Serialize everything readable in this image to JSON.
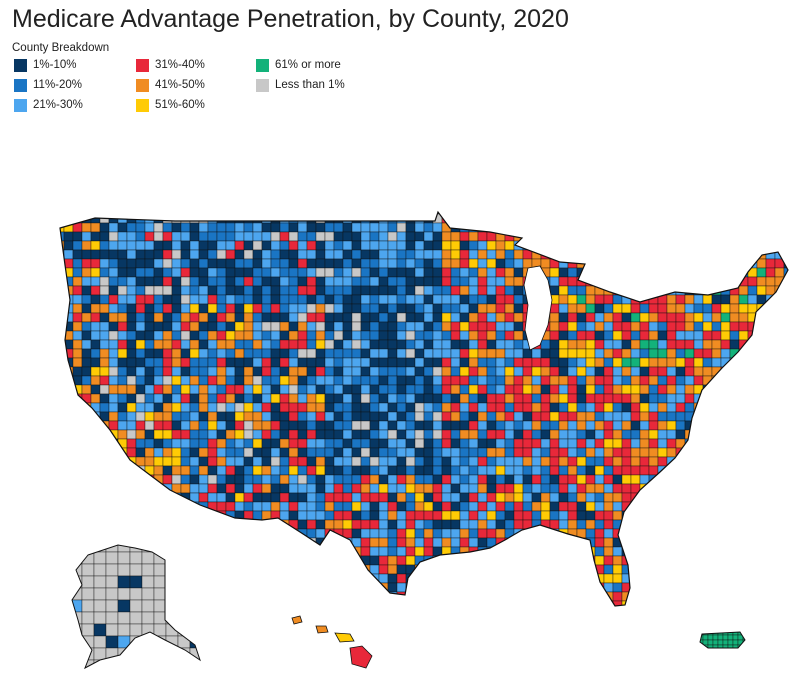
{
  "title": "Medicare Advantage Penetration, by County, 2020",
  "legend": {
    "title": "County Breakdown",
    "items": [
      {
        "label": "1%-10%",
        "color": "#073763"
      },
      {
        "label": "11%-20%",
        "color": "#1a75c4"
      },
      {
        "label": "21%-30%",
        "color": "#4da6ef"
      },
      {
        "label": "31%-40%",
        "color": "#e8283a"
      },
      {
        "label": "41%-50%",
        "color": "#f08c22"
      },
      {
        "label": "51%-60%",
        "color": "#ffcb05"
      },
      {
        "label": "61% or more",
        "color": "#13b27a"
      },
      {
        "label": "Less than 1%",
        "color": "#c8c8c8"
      }
    ]
  }
}
